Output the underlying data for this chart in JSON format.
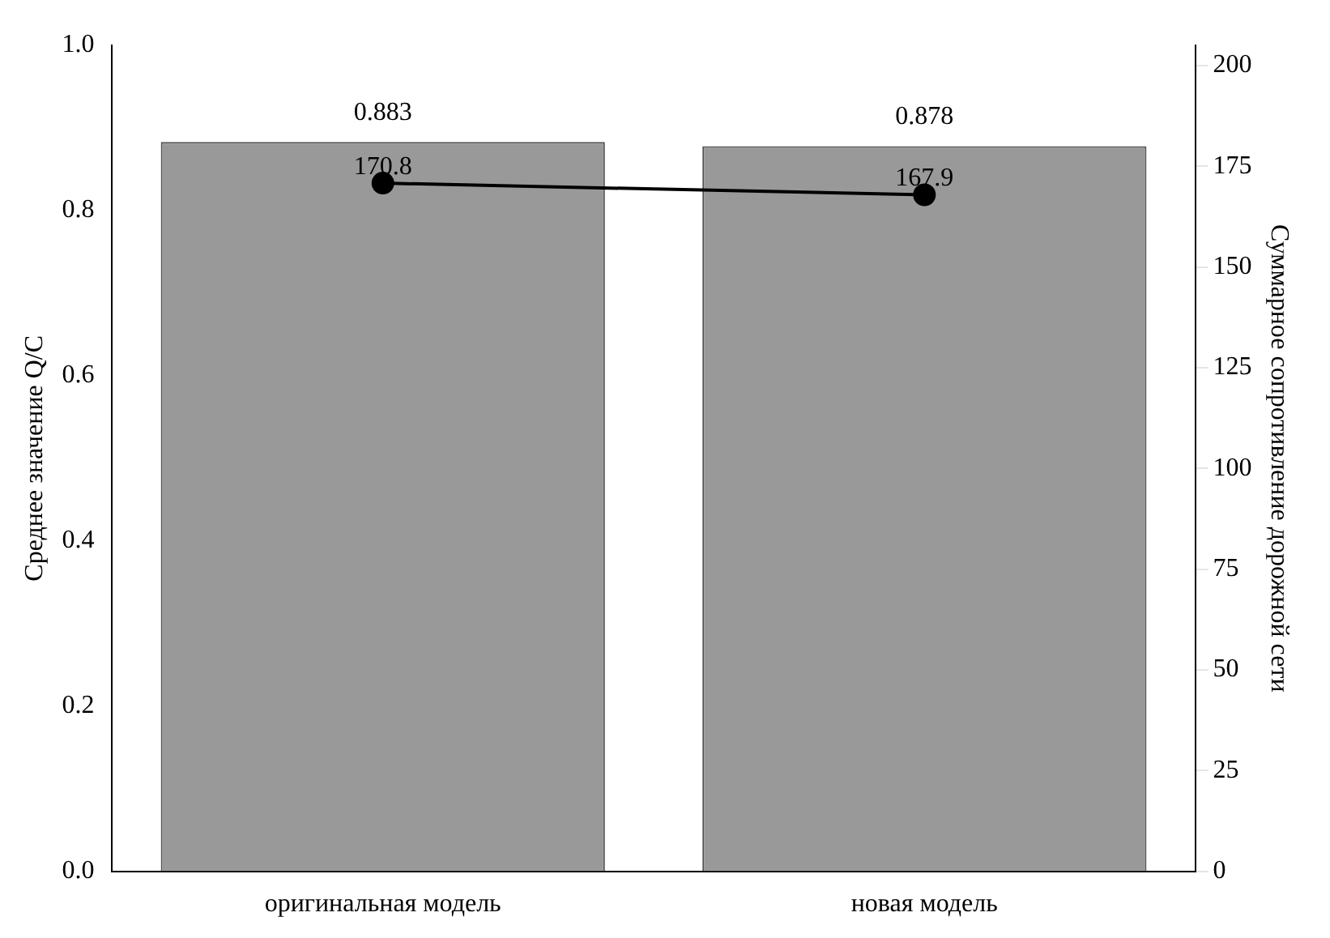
{
  "chart_data": {
    "type": "bar",
    "categories": [
      "оригинальная модель",
      "новая модель"
    ],
    "ylabel": "Среднее значение Q/C",
    "y2label": "Суммарное сопротивление дорожной сети",
    "series": [
      {
        "color": "#999999",
        "values": [
          0.883,
          0.878
        ]
      },
      {
        "type": "line",
        "axis": "y2",
        "color": "#000000",
        "values": [
          170.8,
          167.9
        ],
        "marker": "circle"
      }
    ],
    "ylim": [
      0,
      1
    ],
    "yticks": [
      {
        "value": 0,
        "label": "0.0"
      },
      0.2,
      0.4,
      0.6,
      0.8,
      {
        "value": 1,
        "label": "1.0"
      }
    ],
    "y2lim": [
      0,
      205
    ],
    "y2ticks": [
      0,
      25,
      50,
      75,
      100,
      125,
      150,
      175,
      200
    ],
    "data_labels": true,
    "grid": false,
    "legend": false
  }
}
